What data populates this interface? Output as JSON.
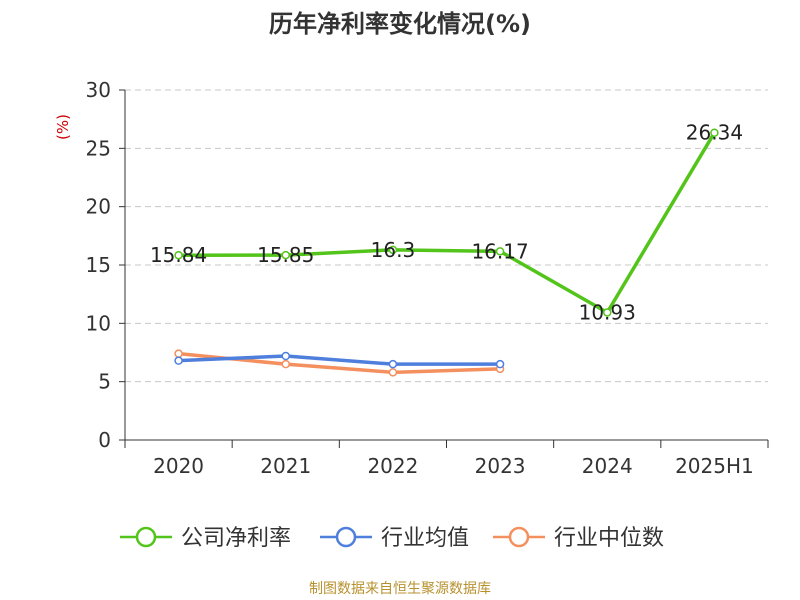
{
  "colors": {
    "company": "#52c41a",
    "industry_avg": "#4e7fdd",
    "industry_median": "#f48f5e",
    "unit_label": "#cc0000",
    "source_note": "#b8912f"
  },
  "chart_data": {
    "type": "line",
    "title": "历年净利率变化情况(%)",
    "ylabel": "(%)",
    "xlabel": "",
    "categories": [
      "2020",
      "2021",
      "2022",
      "2023",
      "2024",
      "2025H1"
    ],
    "ylim": [
      0,
      30
    ],
    "yticks": [
      0,
      5,
      10,
      15,
      20,
      25,
      30
    ],
    "grid": true,
    "legend_position": "bottom",
    "series": [
      {
        "name": "公司净利率",
        "color": "#52c41a",
        "values": [
          15.84,
          15.85,
          16.3,
          16.17,
          10.93,
          26.34
        ],
        "labels": [
          "15.84",
          "15.85",
          "16.3",
          "16.17",
          "10.93",
          "26.34"
        ]
      },
      {
        "name": "行业均值",
        "color": "#4e7fdd",
        "values": [
          6.8,
          7.2,
          6.5,
          6.5,
          null,
          null
        ]
      },
      {
        "name": "行业中位数",
        "color": "#f48f5e",
        "values": [
          7.4,
          6.5,
          5.8,
          6.1,
          null,
          null
        ]
      }
    ]
  },
  "footer": {
    "source": "制图数据来自恒生聚源数据库"
  }
}
